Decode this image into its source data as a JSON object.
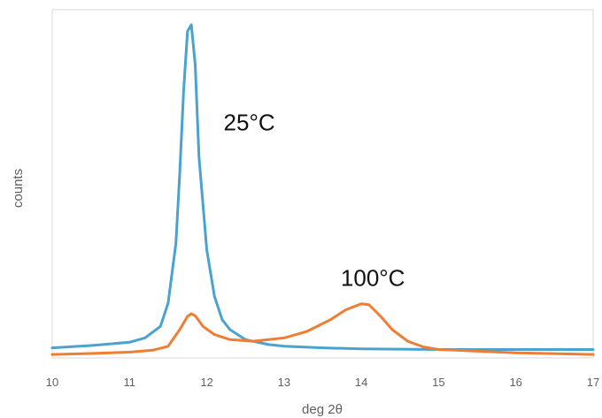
{
  "chart_data": {
    "type": "line",
    "xlabel": "deg 2θ",
    "ylabel": "counts",
    "xlim": [
      10,
      17
    ],
    "ylim": [
      0,
      100
    ],
    "x_ticks": [
      "10",
      "11",
      "12",
      "13",
      "14",
      "15",
      "16",
      "17"
    ],
    "y_ticks_shown": false,
    "grid": false,
    "colors": {
      "25°C": "#4aa3cf",
      "100°C": "#ef7d33"
    },
    "series": [
      {
        "name": "25°C",
        "x": [
          10,
          10.5,
          11,
          11.2,
          11.4,
          11.5,
          11.6,
          11.65,
          11.7,
          11.75,
          11.8,
          11.85,
          11.9,
          12.0,
          12.1,
          12.2,
          12.3,
          12.5,
          12.8,
          13.0,
          13.5,
          14.0,
          15.0,
          16.0,
          17.0
        ],
        "values": [
          2.5,
          3.2,
          4.2,
          5.5,
          9.0,
          16.0,
          34.0,
          55.0,
          80.0,
          98.0,
          100.0,
          88.0,
          60.0,
          32.0,
          18.0,
          11.0,
          8.0,
          5.0,
          3.5,
          3.0,
          2.5,
          2.2,
          2.0,
          2.0,
          2.0
        ]
      },
      {
        "name": "100°C",
        "x": [
          10,
          10.5,
          11,
          11.3,
          11.5,
          11.65,
          11.75,
          11.8,
          11.85,
          11.95,
          12.1,
          12.3,
          12.6,
          13.0,
          13.3,
          13.6,
          13.8,
          14.0,
          14.1,
          14.25,
          14.4,
          14.6,
          14.8,
          15.0,
          15.5,
          16.0,
          17.0
        ],
        "values": [
          0.5,
          0.8,
          1.2,
          1.8,
          3.0,
          8.0,
          12.0,
          12.8,
          12.2,
          9.0,
          6.5,
          5.0,
          4.5,
          5.5,
          7.5,
          11.0,
          14.0,
          15.8,
          15.5,
          12.0,
          8.0,
          4.5,
          2.8,
          2.0,
          1.5,
          1.0,
          0.5
        ]
      }
    ],
    "annotations": [
      {
        "text": "25°C",
        "x": 12.55,
        "y": 70
      },
      {
        "text": "100°C",
        "x": 14.15,
        "y": 23
      }
    ]
  }
}
